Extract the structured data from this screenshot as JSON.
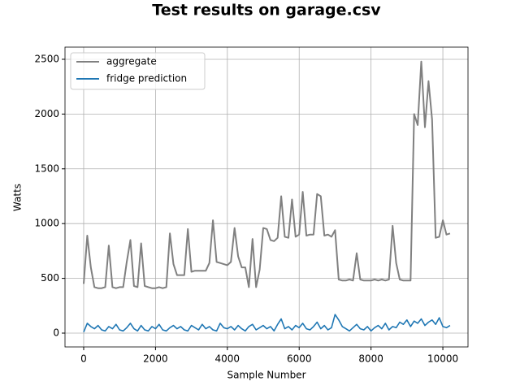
{
  "chart_data": {
    "type": "line",
    "title": "Test results on garage.csv",
    "xlabel": "Sample Number",
    "ylabel": "Watts",
    "x": [
      0,
      100,
      200,
      300,
      400,
      500,
      600,
      700,
      800,
      900,
      1000,
      1100,
      1200,
      1300,
      1400,
      1500,
      1600,
      1700,
      1800,
      1900,
      2000,
      2100,
      2200,
      2300,
      2400,
      2500,
      2600,
      2700,
      2800,
      2900,
      3000,
      3100,
      3200,
      3300,
      3400,
      3500,
      3600,
      3700,
      3800,
      3900,
      4000,
      4100,
      4200,
      4300,
      4400,
      4500,
      4600,
      4700,
      4800,
      4900,
      5000,
      5100,
      5200,
      5300,
      5400,
      5500,
      5600,
      5700,
      5800,
      5900,
      6000,
      6100,
      6200,
      6300,
      6400,
      6500,
      6600,
      6700,
      6800,
      6900,
      7000,
      7100,
      7200,
      7300,
      7400,
      7500,
      7600,
      7700,
      7800,
      7900,
      8000,
      8100,
      8200,
      8300,
      8400,
      8500,
      8600,
      8700,
      8800,
      8900,
      9000,
      9100,
      9200,
      9300,
      9400,
      9500,
      9600,
      9700,
      9800,
      9900,
      10000,
      10100,
      10200
    ],
    "series": [
      {
        "name": "aggregate",
        "color": "#808080",
        "values": [
          450,
          890,
          600,
          420,
          410,
          410,
          420,
          800,
          420,
          410,
          420,
          420,
          650,
          850,
          430,
          420,
          820,
          430,
          420,
          410,
          410,
          420,
          410,
          420,
          910,
          630,
          530,
          530,
          530,
          950,
          560,
          570,
          570,
          570,
          570,
          640,
          1030,
          650,
          640,
          630,
          620,
          650,
          960,
          700,
          600,
          600,
          420,
          860,
          420,
          580,
          960,
          950,
          850,
          840,
          870,
          1250,
          880,
          870,
          1220,
          880,
          900,
          1290,
          890,
          900,
          900,
          1270,
          1250,
          890,
          900,
          880,
          940,
          490,
          480,
          480,
          490,
          480,
          730,
          490,
          480,
          480,
          480,
          490,
          480,
          490,
          480,
          490,
          980,
          640,
          490,
          480,
          480,
          480,
          2000,
          1900,
          2480,
          1880,
          2300,
          1950,
          870,
          880,
          1030,
          900,
          910
        ]
      },
      {
        "name": "fridge prediction",
        "color": "#1f77b4",
        "values": [
          10,
          90,
          60,
          40,
          70,
          30,
          20,
          60,
          40,
          80,
          30,
          20,
          50,
          90,
          40,
          20,
          70,
          30,
          20,
          60,
          40,
          80,
          30,
          20,
          50,
          70,
          40,
          60,
          30,
          20,
          70,
          50,
          30,
          80,
          40,
          60,
          30,
          20,
          90,
          50,
          40,
          60,
          30,
          70,
          40,
          20,
          60,
          80,
          30,
          50,
          70,
          40,
          60,
          20,
          80,
          130,
          40,
          60,
          30,
          70,
          50,
          90,
          40,
          30,
          60,
          100,
          40,
          70,
          30,
          50,
          170,
          120,
          60,
          40,
          20,
          50,
          80,
          40,
          30,
          60,
          20,
          50,
          70,
          40,
          90,
          30,
          60,
          50,
          100,
          80,
          120,
          60,
          110,
          90,
          130,
          70,
          100,
          120,
          80,
          140,
          60,
          50,
          70
        ]
      }
    ],
    "xlim": [
      -520,
      10700
    ],
    "ylim": [
      -126,
      2611
    ],
    "xticks": [
      0,
      2000,
      4000,
      6000,
      8000,
      10000
    ],
    "yticks": [
      0,
      500,
      1000,
      1500,
      2000,
      2500
    ],
    "grid": true,
    "legend": "upper left"
  }
}
